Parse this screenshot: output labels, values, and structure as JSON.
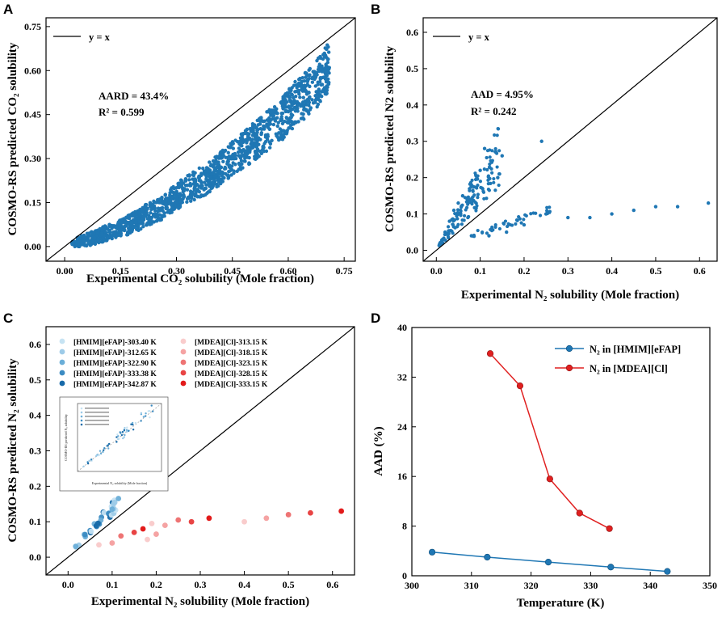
{
  "chart_data": [
    {
      "panel": "A",
      "type": "scatter",
      "xlabel": "Experimental CO₂ solubility (Mole fraction)",
      "ylabel": "COSMO-RS predicted CO₂ solubility",
      "xlim": [
        -0.05,
        0.78
      ],
      "ylim": [
        -0.05,
        0.78
      ],
      "xticks": [
        "0.00",
        "0.15",
        "0.30",
        "0.45",
        "0.60",
        "0.75"
      ],
      "yticks": [
        "0.00",
        "0.15",
        "0.30",
        "0.45",
        "0.60",
        "0.75"
      ],
      "legend": "y = x",
      "annotations": [
        "AARD = 43.4%",
        "R² = 0.599"
      ],
      "color": "#1f77b4",
      "points": [
        [
          0.02,
          0.01
        ],
        [
          0.05,
          0.02
        ],
        [
          0.08,
          0.03
        ],
        [
          0.1,
          0.04
        ],
        [
          0.12,
          0.05
        ],
        [
          0.15,
          0.06
        ],
        [
          0.18,
          0.08
        ],
        [
          0.2,
          0.09
        ],
        [
          0.22,
          0.11
        ],
        [
          0.25,
          0.12
        ],
        [
          0.28,
          0.15
        ],
        [
          0.3,
          0.17
        ],
        [
          0.32,
          0.19
        ],
        [
          0.35,
          0.21
        ],
        [
          0.38,
          0.23
        ],
        [
          0.4,
          0.25
        ],
        [
          0.42,
          0.27
        ],
        [
          0.45,
          0.3
        ],
        [
          0.48,
          0.33
        ],
        [
          0.5,
          0.35
        ],
        [
          0.52,
          0.37
        ],
        [
          0.55,
          0.4
        ],
        [
          0.58,
          0.43
        ],
        [
          0.6,
          0.46
        ],
        [
          0.62,
          0.49
        ],
        [
          0.65,
          0.52
        ],
        [
          0.68,
          0.56
        ],
        [
          0.7,
          0.6
        ],
        [
          0.71,
          0.61
        ]
      ]
    },
    {
      "panel": "B",
      "type": "scatter",
      "xlabel": "Experimental N₂ solubility (Mole fraction)",
      "ylabel": "COSMO-RS predicted N2 solubility",
      "xlim": [
        -0.03,
        0.64
      ],
      "ylim": [
        -0.03,
        0.64
      ],
      "xticks": [
        "0.0",
        "0.1",
        "0.2",
        "0.3",
        "0.4",
        "0.5",
        "0.6"
      ],
      "yticks": [
        "0.0",
        "0.1",
        "0.2",
        "0.3",
        "0.4",
        "0.5",
        "0.6"
      ],
      "legend": "y = x",
      "annotations": [
        "AAD = 4.95%",
        "R² = 0.242"
      ],
      "color": "#1f77b4",
      "points": [
        [
          0.01,
          0.02
        ],
        [
          0.02,
          0.05
        ],
        [
          0.03,
          0.08
        ],
        [
          0.04,
          0.11
        ],
        [
          0.05,
          0.13
        ],
        [
          0.06,
          0.15
        ],
        [
          0.08,
          0.18
        ],
        [
          0.1,
          0.22
        ],
        [
          0.11,
          0.28
        ],
        [
          0.14,
          0.2
        ],
        [
          0.15,
          0.26
        ],
        [
          0.24,
          0.3
        ],
        [
          0.08,
          0.04
        ],
        [
          0.12,
          0.04
        ],
        [
          0.16,
          0.05
        ],
        [
          0.2,
          0.07
        ],
        [
          0.25,
          0.1
        ],
        [
          0.3,
          0.09
        ],
        [
          0.35,
          0.09
        ],
        [
          0.4,
          0.1
        ],
        [
          0.45,
          0.11
        ],
        [
          0.5,
          0.12
        ],
        [
          0.55,
          0.12
        ],
        [
          0.62,
          0.13
        ]
      ]
    },
    {
      "panel": "C",
      "type": "scatter",
      "xlabel": "Experimental N₂ solubility (Mole fraction)",
      "ylabel": "COSMO-RS predicted N₂ solubility",
      "xlim": [
        -0.05,
        0.65
      ],
      "ylim": [
        -0.05,
        0.65
      ],
      "xticks": [
        "0.0",
        "0.1",
        "0.2",
        "0.3",
        "0.4",
        "0.5",
        "0.6"
      ],
      "yticks": [
        "0.0",
        "0.1",
        "0.2",
        "0.3",
        "0.4",
        "0.5",
        "0.6"
      ],
      "legend": [
        {
          "label": "[HMIM][eFAP]-303.40 K",
          "color": "#c6e3f3"
        },
        {
          "label": "[HMIM][eFAP]-312.65 K",
          "color": "#9dcbe8"
        },
        {
          "label": "[HMIM][eFAP]-322.90 K",
          "color": "#6aaed8"
        },
        {
          "label": "[HMIM][eFAP]-333.38 K",
          "color": "#3b8bc2"
        },
        {
          "label": "[HMIM][eFAP]-342.87 K",
          "color": "#1669a8"
        },
        {
          "label": "[MDEA][Cl]-313.15 K",
          "color": "#f9cccc"
        },
        {
          "label": "[MDEA][Cl]-318.15 K",
          "color": "#f5a3a3"
        },
        {
          "label": "[MDEA][Cl]-323.15 K",
          "color": "#ee7474"
        },
        {
          "label": "[MDEA][Cl]-328.15 K",
          "color": "#e84444"
        },
        {
          "label": "[MDEA][Cl]-333.15 K",
          "color": "#e21a1a"
        }
      ],
      "points_hmim": [
        [
          0.02,
          0.03
        ],
        [
          0.04,
          0.06
        ],
        [
          0.06,
          0.09
        ],
        [
          0.08,
          0.12
        ],
        [
          0.1,
          0.15
        ],
        [
          0.11,
          0.16
        ],
        [
          0.09,
          0.13
        ],
        [
          0.07,
          0.1
        ],
        [
          0.05,
          0.07
        ],
        [
          0.1,
          0.12
        ],
        [
          0.105,
          0.14
        ]
      ],
      "points_mdea": [
        [
          0.07,
          0.035
        ],
        [
          0.1,
          0.04
        ],
        [
          0.12,
          0.06
        ],
        [
          0.15,
          0.07
        ],
        [
          0.17,
          0.08
        ],
        [
          0.19,
          0.095
        ],
        [
          0.22,
          0.09
        ],
        [
          0.25,
          0.105
        ],
        [
          0.28,
          0.1
        ],
        [
          0.32,
          0.11
        ],
        [
          0.4,
          0.1
        ],
        [
          0.45,
          0.11
        ],
        [
          0.5,
          0.12
        ],
        [
          0.55,
          0.125
        ],
        [
          0.62,
          0.13
        ],
        [
          0.18,
          0.05
        ],
        [
          0.2,
          0.065
        ]
      ],
      "inset": {
        "xlabel": "Experimental N₂ solubility (Mole fraction)",
        "ylabel": "COSMO-RS predicted N₂ solubility"
      }
    },
    {
      "panel": "D",
      "type": "line",
      "xlabel": "Temperature (K)",
      "ylabel": "AAD (%)",
      "xlim": [
        300,
        350
      ],
      "ylim": [
        0,
        40
      ],
      "xticks": [
        "300",
        "310",
        "320",
        "330",
        "340",
        "350"
      ],
      "yticks": [
        "0",
        "8",
        "16",
        "24",
        "32",
        "40"
      ],
      "series": [
        {
          "name": "N₂ in [HMIM][eFAP]",
          "color": "#1f77b4",
          "x": [
            303.4,
            312.65,
            322.9,
            333.38,
            342.87
          ],
          "y": [
            3.8,
            3.0,
            2.2,
            1.4,
            0.7
          ]
        },
        {
          "name": "N₂ in [MDEA][Cl]",
          "color": "#e02020",
          "x": [
            313.15,
            318.15,
            323.15,
            328.15,
            333.15
          ],
          "y": [
            35.8,
            30.6,
            15.6,
            10.1,
            7.6
          ]
        }
      ]
    }
  ],
  "panel_letters": [
    "A",
    "B",
    "C",
    "D"
  ]
}
